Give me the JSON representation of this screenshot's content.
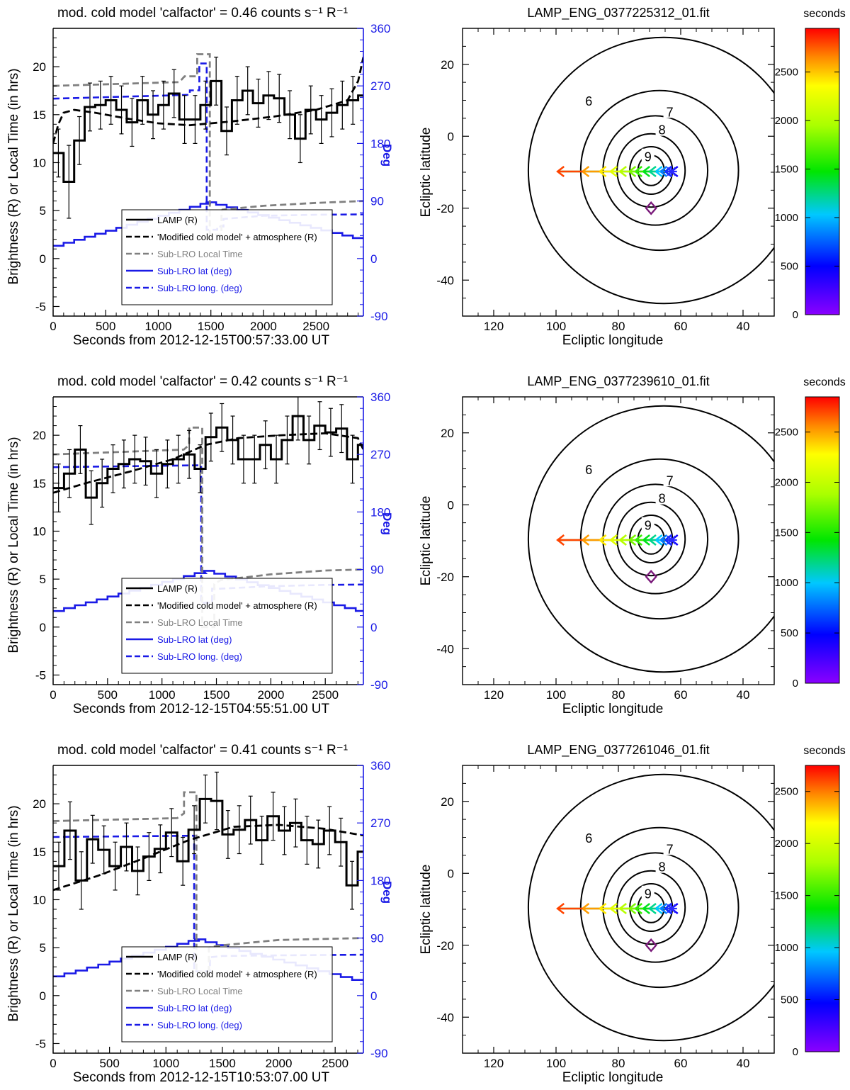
{
  "figure": {
    "legend_labels": {
      "lamp": "LAMP (R)",
      "model": "'Modified cold model' + atmosphere (R)",
      "local_time": "Sub-LRO Local Time",
      "lat": "Sub-LRO lat (deg)",
      "long": "Sub-LRO long. (deg)"
    },
    "colors": {
      "lamp": "#000000",
      "model": "#000000",
      "local_time": "#808080",
      "lat": "#1a1ae6",
      "long": "#1a1ae6",
      "right_axis": "#1a1ae6",
      "diamond": "#7a1a7a"
    }
  },
  "chart_data": [
    {
      "type": "line",
      "title": "mod. cold model 'calfactor' = 0.46 counts s⁻¹ R⁻¹",
      "xlabel": "Seconds from 2012-12-15T00:57:33.00 UT",
      "ylabel": "Brightness (R) or Local Time (in hrs)",
      "ylabel_right": "Deg",
      "xlim": [
        0,
        2950
      ],
      "ylim": [
        -6,
        24
      ],
      "ylim_right": [
        -90,
        360
      ],
      "xticks": [
        0,
        500,
        1000,
        1500,
        2000,
        2500
      ],
      "yticks": [
        -5,
        0,
        5,
        10,
        15,
        20
      ],
      "yticks_right": [
        -90,
        0,
        90,
        180,
        270,
        360
      ],
      "bin_width": 100,
      "lamp": [
        11,
        8,
        12.3,
        15.8,
        16,
        16.5,
        15.5,
        14.2,
        16.5,
        15,
        16,
        17.2,
        14.5,
        14.5,
        16,
        18.5,
        13.3,
        16.5,
        17.5,
        16.2,
        17,
        16.7,
        15,
        12.5,
        15.5,
        14.5,
        15.2,
        16,
        16.5,
        17,
        14.5
      ],
      "lamp_err": [
        2.5,
        3.8,
        2.5,
        2.5,
        2.5,
        2.5,
        2.5,
        2.5,
        2.5,
        2.5,
        2.5,
        2.5,
        2.5,
        2.5,
        2.5,
        2.5,
        2.5,
        2.5,
        2.5,
        2.5,
        2.5,
        2.5,
        2.5,
        2.5,
        2.5,
        2.5,
        2.5,
        2.5,
        2.5,
        2.5,
        2.5
      ],
      "model": [
        [
          0,
          12
        ],
        [
          50,
          14
        ],
        [
          100,
          15.2
        ],
        [
          200,
          15.5
        ],
        [
          400,
          15.2
        ],
        [
          700,
          14.6
        ],
        [
          1000,
          14.1
        ],
        [
          1300,
          13.9
        ],
        [
          1700,
          14.3
        ],
        [
          2100,
          14.8
        ],
        [
          2500,
          15.5
        ],
        [
          2800,
          16.5
        ],
        [
          2900,
          18.5
        ],
        [
          2950,
          21
        ]
      ],
      "local_time": [
        [
          0,
          18
        ],
        [
          1200,
          18.4
        ],
        [
          1200,
          18.4
        ],
        [
          1250,
          19
        ],
        [
          1250,
          19
        ],
        [
          1370,
          19
        ],
        [
          1370,
          21.3
        ],
        [
          1490,
          21.3
        ],
        [
          1490,
          2.5
        ],
        [
          1600,
          2.5
        ],
        [
          1600,
          4.9
        ],
        [
          1610,
          5.1
        ],
        [
          2000,
          5.5
        ],
        [
          2500,
          5.8
        ],
        [
          2950,
          6
        ]
      ],
      "lat": [
        [
          0,
          20
        ],
        [
          1450,
          88
        ],
        [
          2950,
          28
        ]
      ],
      "long": [
        [
          0,
          250
        ],
        [
          1300,
          256
        ],
        [
          1300,
          263
        ],
        [
          1390,
          263
        ],
        [
          1390,
          305
        ],
        [
          1460,
          305
        ],
        [
          1460,
          45
        ],
        [
          1560,
          45
        ],
        [
          1560,
          50
        ],
        [
          1620,
          50
        ],
        [
          1620,
          62
        ],
        [
          2000,
          67
        ],
        [
          2500,
          68.5
        ],
        [
          2950,
          69
        ]
      ],
      "contour_title": "LAMP_ENG_0377225312_01.fit",
      "colorbar_max": 2950
    },
    {
      "type": "line",
      "title": "mod. cold model 'calfactor' = 0.42 counts s⁻¹ R⁻¹",
      "xlabel": "Seconds from 2012-12-15T04:55:51.00 UT",
      "ylabel": "Brightness (R) or Local Time (in hrs)",
      "ylabel_right": "Deg",
      "xlim": [
        0,
        2850
      ],
      "ylim": [
        -6,
        24
      ],
      "ylim_right": [
        -90,
        360
      ],
      "xticks": [
        0,
        500,
        1000,
        1500,
        2000,
        2500
      ],
      "yticks": [
        -5,
        0,
        5,
        10,
        15,
        20
      ],
      "yticks_right": [
        -90,
        0,
        90,
        180,
        270,
        360
      ],
      "bin_width": 100,
      "lamp": [
        14.5,
        16,
        18.5,
        13.5,
        15,
        16.5,
        17,
        17.5,
        17.3,
        16,
        17,
        17.5,
        18,
        16.5,
        19.8,
        20.8,
        19.5,
        17.5,
        17.5,
        19,
        17.5,
        19.5,
        22,
        19.5,
        21,
        20.3,
        20.7,
        17.5,
        19
      ],
      "lamp_err": [
        2.5,
        2.5,
        2.5,
        2.8,
        2.5,
        2.5,
        2.5,
        2.5,
        2.5,
        2.5,
        2.5,
        2.5,
        2.5,
        2.5,
        2.5,
        2.5,
        2.5,
        2.5,
        2.5,
        2.5,
        2.5,
        2.5,
        2.5,
        2.5,
        2.5,
        2.5,
        2.5,
        2.5,
        2.5
      ],
      "model": [
        [
          0,
          14
        ],
        [
          300,
          15
        ],
        [
          700,
          16.2
        ],
        [
          1100,
          17.5
        ],
        [
          1400,
          19
        ],
        [
          1700,
          19.7
        ],
        [
          2100,
          20
        ],
        [
          2500,
          20.2
        ],
        [
          2800,
          19.7
        ],
        [
          2850,
          18.5
        ]
      ],
      "local_time": [
        [
          0,
          18
        ],
        [
          1200,
          18.5
        ],
        [
          1200,
          18.5
        ],
        [
          1250,
          19
        ],
        [
          1250,
          20.8
        ],
        [
          1370,
          20.8
        ],
        [
          1370,
          0
        ],
        [
          1480,
          0
        ],
        [
          1480,
          4.5
        ],
        [
          1540,
          4.9
        ],
        [
          2000,
          5.5
        ],
        [
          2500,
          5.9
        ],
        [
          2850,
          6
        ]
      ],
      "lat": [
        [
          0,
          25
        ],
        [
          1380,
          88
        ],
        [
          2850,
          22
        ]
      ],
      "long": [
        [
          0,
          250
        ],
        [
          1360,
          253
        ],
        [
          1360,
          38
        ],
        [
          1460,
          38
        ],
        [
          1460,
          60
        ],
        [
          1530,
          60
        ],
        [
          2000,
          64
        ],
        [
          2500,
          66
        ],
        [
          2850,
          66.5
        ]
      ],
      "contour_title": "LAMP_ENG_0377239610_01.fit",
      "colorbar_max": 2850
    },
    {
      "type": "line",
      "title": "mod. cold model 'calfactor' = 0.41 counts s⁻¹ R⁻¹",
      "xlabel": "Seconds from 2012-12-15T10:53:07.00 UT",
      "ylabel": "Brightness (R) or Local Time (in hrs)",
      "ylabel_right": "Deg",
      "xlim": [
        0,
        2750
      ],
      "ylim": [
        -6,
        24
      ],
      "ylim_right": [
        -90,
        360
      ],
      "xticks": [
        0,
        500,
        1000,
        1500,
        2000,
        2500
      ],
      "yticks": [
        -5,
        0,
        5,
        10,
        15,
        20
      ],
      "yticks_right": [
        -90,
        0,
        90,
        180,
        270,
        360
      ],
      "bin_width": 100,
      "lamp": [
        13.5,
        17.2,
        12,
        16.3,
        15.2,
        13.5,
        15.5,
        13,
        14.5,
        15.3,
        17,
        14,
        17.3,
        20.5,
        20.3,
        16.8,
        17.3,
        18.3,
        16.2,
        18.7,
        17.2,
        18,
        16.2,
        15.8,
        17.2,
        16,
        11.5,
        15
      ],
      "lamp_err": [
        2.5,
        3,
        3,
        2.5,
        2.5,
        2.5,
        2.5,
        2.5,
        2.5,
        2.5,
        2.5,
        2.5,
        2.5,
        2.5,
        3,
        2.5,
        2.5,
        2.5,
        2.5,
        2.5,
        2.5,
        2.5,
        2.5,
        2.5,
        2.5,
        2.5,
        2.5,
        2.5
      ],
      "model": [
        [
          0,
          11
        ],
        [
          400,
          12.5
        ],
        [
          800,
          14.3
        ],
        [
          1200,
          16.2
        ],
        [
          1600,
          17.6
        ],
        [
          2000,
          17.8
        ],
        [
          2400,
          17.4
        ],
        [
          2750,
          16.7
        ]
      ],
      "local_time": [
        [
          0,
          18.2
        ],
        [
          1100,
          18.5
        ],
        [
          1100,
          18.5
        ],
        [
          1160,
          19
        ],
        [
          1160,
          21.2
        ],
        [
          1270,
          21.2
        ],
        [
          1270,
          2.5
        ],
        [
          1380,
          2.5
        ],
        [
          1380,
          5
        ],
        [
          1460,
          5.2
        ],
        [
          2000,
          5.8
        ],
        [
          2750,
          6
        ]
      ],
      "lat": [
        [
          0,
          30
        ],
        [
          1250,
          88
        ],
        [
          2750,
          20
        ]
      ],
      "long": [
        [
          0,
          248
        ],
        [
          1250,
          250
        ],
        [
          1250,
          38
        ],
        [
          1390,
          38
        ],
        [
          1390,
          60
        ],
        [
          1500,
          62
        ],
        [
          2000,
          63
        ],
        [
          2750,
          64
        ]
      ],
      "contour_title": "LAMP_ENG_0377261046_01.fit",
      "colorbar_max": 2750
    }
  ],
  "contour_common": {
    "xlabel": "Ecliptic longitude",
    "ylabel": "Ecliptic latitude",
    "xlim": [
      130,
      30
    ],
    "ylim": [
      -50,
      30
    ],
    "xticks": [
      120,
      100,
      80,
      60,
      40
    ],
    "yticks": [
      -40,
      -20,
      0,
      20
    ],
    "center": [
      69.5,
      -9.5
    ],
    "contour_radii": [
      4.2,
      6.6,
      10.2,
      15.2,
      22.2,
      37
    ],
    "contour_labels": [
      {
        "text": "9",
        "ring": 2,
        "at": [
          70.5,
          -6
        ]
      },
      {
        "text": "8",
        "ring": 3,
        "at": [
          66,
          1.5
        ]
      },
      {
        "text": "7",
        "ring": 4,
        "at": [
          63.5,
          6.5
        ]
      },
      {
        "text": "6",
        "ring": 5,
        "at": [
          89.5,
          9.5
        ]
      }
    ],
    "track_lons": [
      63,
      65,
      66.5,
      68,
      70,
      72,
      74.5,
      76.5,
      79.5,
      82.5,
      86,
      91.5,
      99.5
    ],
    "track_lat": -9.8,
    "moon_point": [
      69.5,
      -20
    ],
    "colorbar_label": "seconds",
    "colorbar_ticks": [
      0,
      500,
      1000,
      1500,
      2000,
      2500
    ]
  }
}
